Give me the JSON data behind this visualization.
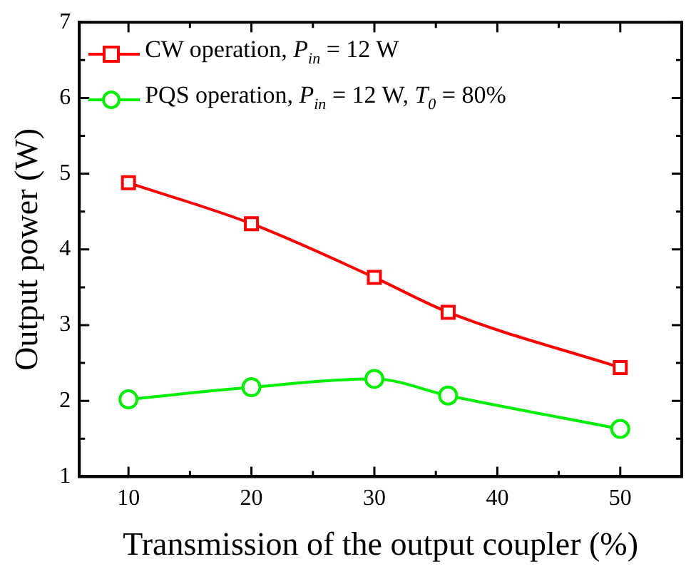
{
  "chart_data": {
    "type": "line",
    "xlabel": "Transmission of the output coupler (%)",
    "ylabel": "Output power (W)",
    "x": [
      10,
      20,
      30,
      36,
      50
    ],
    "series": [
      {
        "name": "CW operation, P$_{in}$ = 12 W",
        "color": "#ff0000",
        "marker": "square",
        "values": [
          4.88,
          4.34,
          3.63,
          3.17,
          2.44
        ]
      },
      {
        "name": "PQS operation, P$_{in}$ = 12 W, T$_{0}$ = 80%",
        "color": "#00ee00",
        "marker": "circle",
        "values": [
          2.02,
          2.18,
          2.29,
          2.07,
          1.63
        ]
      }
    ],
    "xlim": [
      6,
      55
    ],
    "xticks": [
      10,
      {
        "value": 15,
        "label": null
      },
      20,
      {
        "value": 25,
        "label": null
      },
      30,
      {
        "value": 35,
        "label": null
      },
      40,
      {
        "value": 45,
        "label": null
      },
      50
    ],
    "ylim": [
      1,
      7
    ],
    "yticks": [
      1,
      {
        "value": 1.5,
        "label": null
      },
      2,
      {
        "value": 2.5,
        "label": null
      },
      3,
      {
        "value": 3.5,
        "label": null
      },
      4,
      {
        "value": 4.5,
        "label": null
      },
      5,
      {
        "value": 5.5,
        "label": null
      },
      6,
      {
        "value": 6.5,
        "label": null
      },
      7
    ],
    "legend": "top left",
    "grid": false
  }
}
